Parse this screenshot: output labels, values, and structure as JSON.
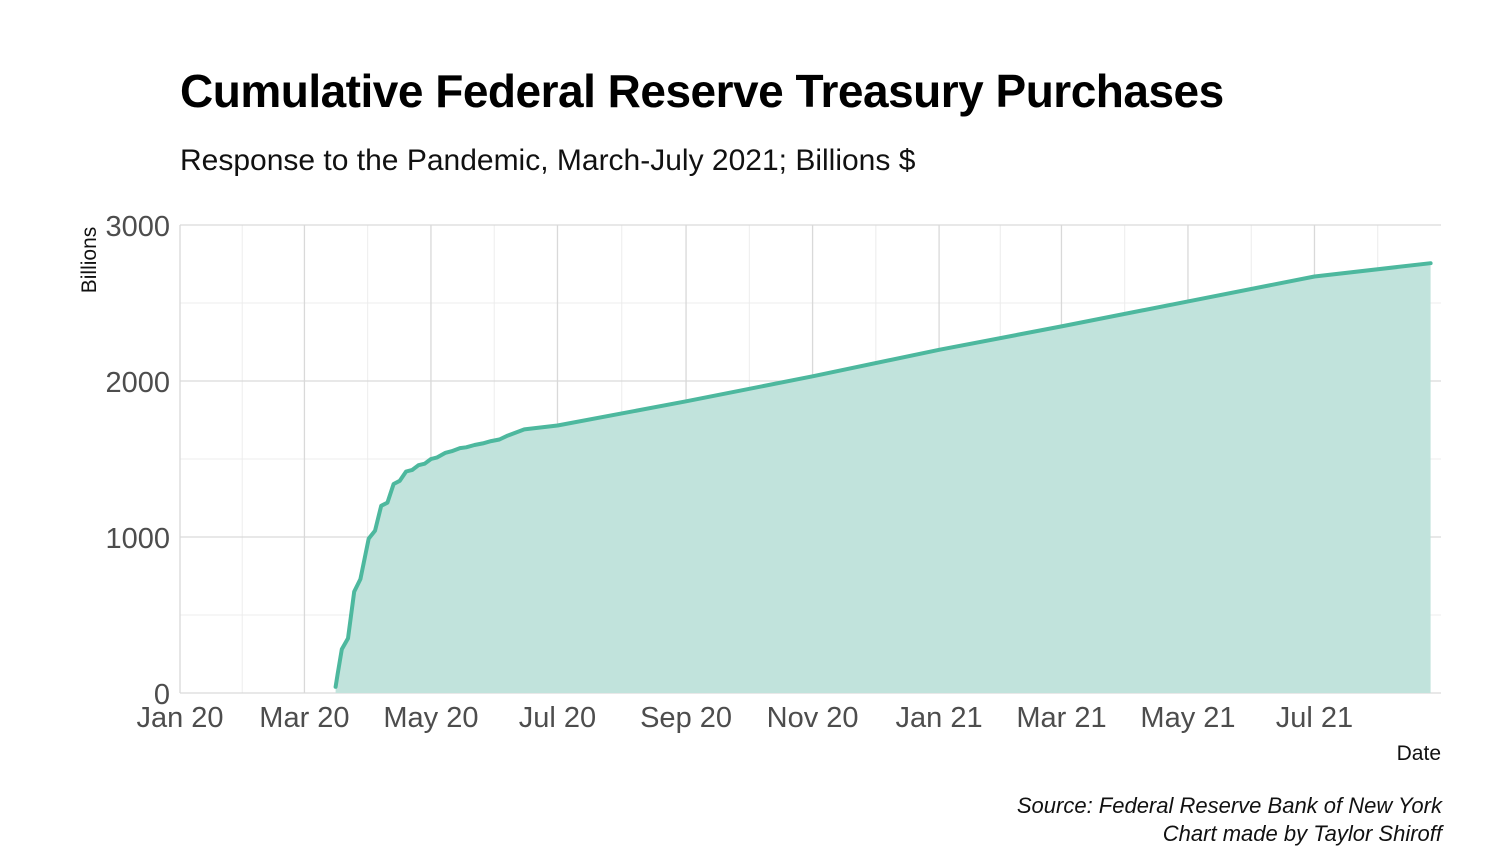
{
  "chart_data": {
    "type": "area",
    "title": "Cumulative Federal Reserve Treasury Purchases",
    "subtitle": "Response to the Pandemic, March-July 2021; Billions $",
    "xlabel": "Date",
    "ylabel": "Billions",
    "ylim": [
      0,
      3000
    ],
    "yticks": [
      0,
      1000,
      2000,
      3000
    ],
    "xlim": [
      "2020-01-01",
      "2021-08-31"
    ],
    "xticks": [
      {
        "date": "2020-01-01",
        "label": "Jan 20"
      },
      {
        "date": "2020-03-01",
        "label": "Mar 20"
      },
      {
        "date": "2020-05-01",
        "label": "May 20"
      },
      {
        "date": "2020-07-01",
        "label": "Jul 20"
      },
      {
        "date": "2020-09-01",
        "label": "Sep 20"
      },
      {
        "date": "2020-11-01",
        "label": "Nov 20"
      },
      {
        "date": "2021-01-01",
        "label": "Jan 21"
      },
      {
        "date": "2021-03-01",
        "label": "Mar 21"
      },
      {
        "date": "2021-05-01",
        "label": "May 21"
      },
      {
        "date": "2021-07-01",
        "label": "Jul 21"
      }
    ],
    "grid": true,
    "color": "#4db89e",
    "fill": "#c1e3dc",
    "series": [
      {
        "x": [
          "2020-03-16",
          "2020-03-17",
          "2020-03-19",
          "2020-03-22",
          "2020-03-25",
          "2020-03-28",
          "2020-04-01",
          "2020-04-04",
          "2020-04-07",
          "2020-04-10",
          "2020-04-13",
          "2020-04-16",
          "2020-04-19",
          "2020-04-22",
          "2020-04-25",
          "2020-04-28",
          "2020-05-01",
          "2020-05-04",
          "2020-05-08",
          "2020-05-11",
          "2020-05-15",
          "2020-05-18",
          "2020-05-22",
          "2020-05-26",
          "2020-05-30",
          "2020-06-03",
          "2020-06-07",
          "2020-06-11",
          "2020-06-15",
          "2020-07-01",
          "2020-09-01",
          "2020-11-01",
          "2021-01-01",
          "2021-03-01",
          "2021-05-01",
          "2021-07-01",
          "2021-08-26"
        ],
        "values": [
          40,
          120,
          280,
          350,
          650,
          730,
          990,
          1040,
          1200,
          1220,
          1340,
          1360,
          1420,
          1430,
          1460,
          1470,
          1500,
          1510,
          1540,
          1550,
          1570,
          1575,
          1590,
          1600,
          1615,
          1625,
          1650,
          1670,
          1690,
          1715,
          1870,
          2030,
          2200,
          2350,
          2510,
          2670,
          2755
        ]
      }
    ]
  },
  "caption": {
    "source": "Source: Federal Reserve Bank of New York",
    "credit": "Chart made by Taylor Shiroff"
  }
}
